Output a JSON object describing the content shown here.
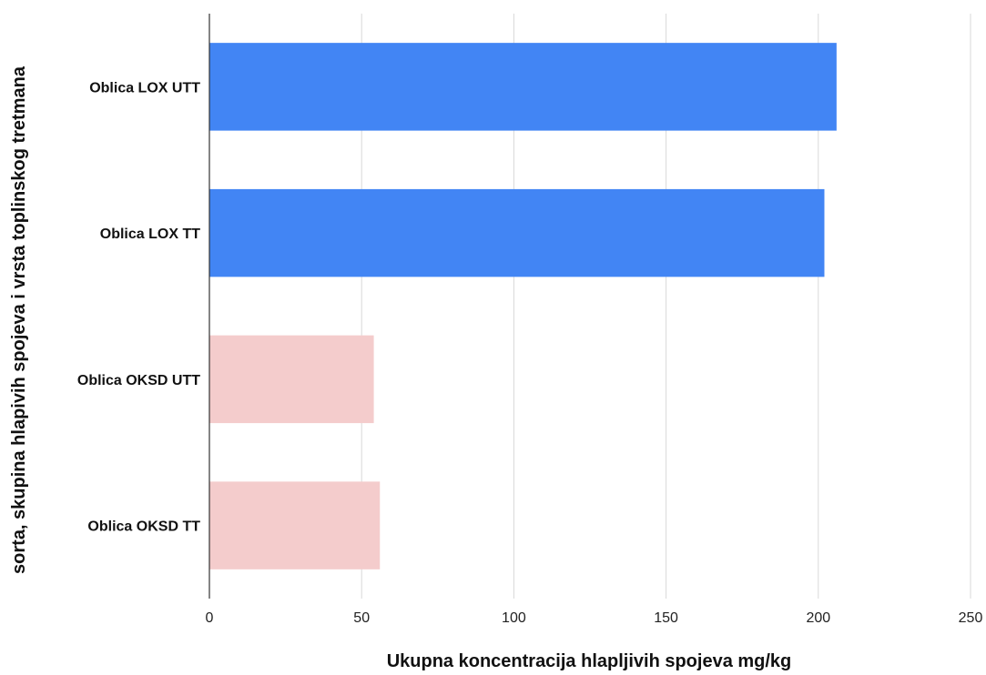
{
  "chart_data": {
    "type": "bar",
    "orientation": "horizontal",
    "categories": [
      "Oblica LOX UTT",
      "Oblica LOX TT",
      "Oblica OKSD UTT",
      "Oblica OKSD TT"
    ],
    "values": [
      206,
      202,
      54,
      56
    ],
    "bar_colors": [
      "#4285f4",
      "#4285f4",
      "#f4cccc",
      "#f4cccc"
    ],
    "xlim": [
      0,
      250
    ],
    "x_ticks": [
      0,
      50,
      100,
      150,
      200,
      250
    ],
    "xlabel": "Ukupna koncentracija hlapljivih spojeva mg/kg",
    "ylabel": "sorta, skupina hlapivih spojeva i vrsta toplinskog tretmana",
    "grid": "vertical",
    "legend": "none"
  }
}
